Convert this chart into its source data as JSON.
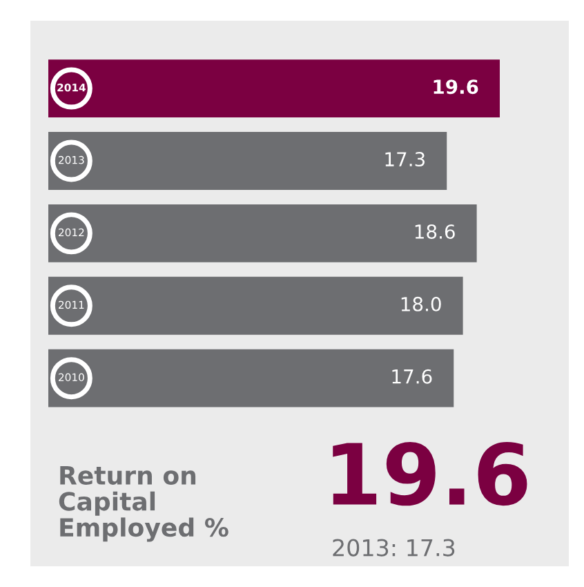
{
  "chart_data": {
    "type": "bar",
    "orientation": "horizontal",
    "categories": [
      "2014",
      "2013",
      "2012",
      "2011",
      "2010"
    ],
    "values": [
      19.6,
      17.3,
      18.6,
      18.0,
      17.6
    ],
    "value_labels": [
      "19.6",
      "17.3",
      "18.6",
      "18.0",
      "17.6"
    ],
    "colors": [
      "#7b0041",
      "#6d6e71",
      "#6d6e71",
      "#6d6e71",
      "#6d6e71"
    ],
    "tick_labels": false,
    "annotations": [
      "Return on\nCapital\nEmployed %",
      "19.6",
      "2013: 17.3"
    ]
  }
}
